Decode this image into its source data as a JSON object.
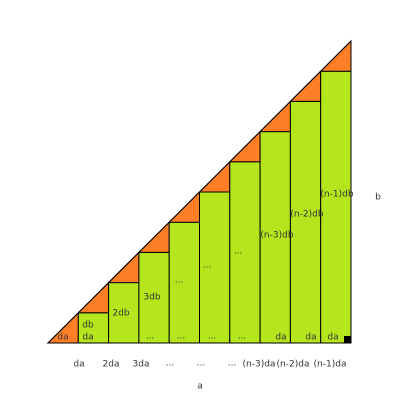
{
  "column_labels": {
    "lower": [
      "da",
      "da",
      "...",
      "...",
      "...",
      "...",
      "da",
      "da",
      "da"
    ],
    "upper": [
      "db",
      "2db",
      "3db",
      "...",
      "...",
      "...",
      "(n-3)db",
      "(n-2)db",
      "(n-1)db"
    ]
  },
  "bottom_labels": [
    "da",
    "2da",
    "3da",
    "...",
    "...",
    "...",
    "(n-3)da",
    "(n-2)da",
    "(n-1)da"
  ],
  "axis_labels": {
    "a": "a",
    "b": "b"
  }
}
